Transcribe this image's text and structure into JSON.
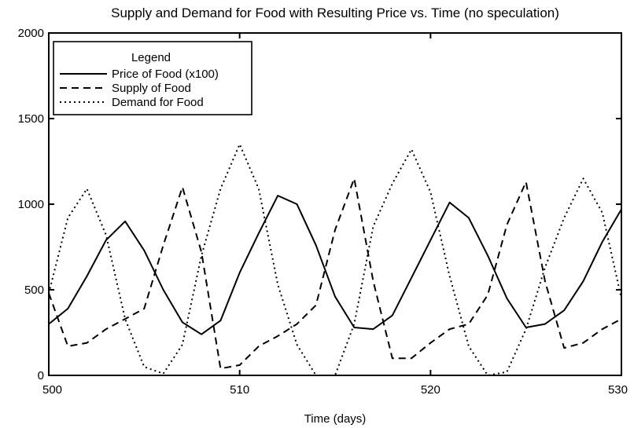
{
  "chart_data": {
    "type": "line",
    "title": "Supply and Demand for Food with Resulting Price vs. Time (no speculation)",
    "xlabel": "Time (days)",
    "ylabel": "",
    "xlim": [
      500,
      530
    ],
    "ylim": [
      0,
      2000
    ],
    "xticks": [
      500,
      510,
      520,
      530
    ],
    "yticks": [
      0,
      500,
      1000,
      1500,
      2000
    ],
    "xtick_labels": [
      "500",
      "510",
      "520",
      "530"
    ],
    "ytick_labels": [
      "0",
      "500",
      "1000",
      "1500",
      "2000"
    ],
    "grid": false,
    "legend": {
      "title": "Legend",
      "placement": "top-left"
    },
    "x": [
      500,
      501,
      502,
      503,
      504,
      505,
      506,
      507,
      508,
      509,
      510,
      511,
      512,
      513,
      514,
      515,
      516,
      517,
      518,
      519,
      520,
      521,
      522,
      523,
      524,
      525,
      526,
      527,
      528,
      529,
      530
    ],
    "series": [
      {
        "name": "Price of Food (x100)",
        "style": "solid",
        "values": [
          300,
          390,
          580,
          790,
          900,
          730,
          500,
          310,
          240,
          320,
          600,
          830,
          1050,
          1000,
          760,
          460,
          280,
          270,
          350,
          570,
          790,
          1010,
          920,
          700,
          450,
          280,
          300,
          380,
          550,
          780,
          970
        ]
      },
      {
        "name": "Supply of Food",
        "style": "dashed",
        "values": [
          480,
          170,
          190,
          270,
          330,
          390,
          760,
          1100,
          720,
          40,
          60,
          170,
          230,
          300,
          410,
          850,
          1150,
          550,
          100,
          100,
          190,
          270,
          300,
          470,
          880,
          1130,
          550,
          160,
          190,
          270,
          330
        ]
      },
      {
        "name": "Demand for Food",
        "style": "dotted",
        "values": [
          480,
          920,
          1090,
          820,
          330,
          50,
          10,
          180,
          700,
          1090,
          1350,
          1090,
          530,
          180,
          0,
          0,
          300,
          870,
          1120,
          1320,
          1070,
          580,
          170,
          0,
          20,
          270,
          630,
          920,
          1150,
          950,
          450
        ]
      }
    ]
  }
}
